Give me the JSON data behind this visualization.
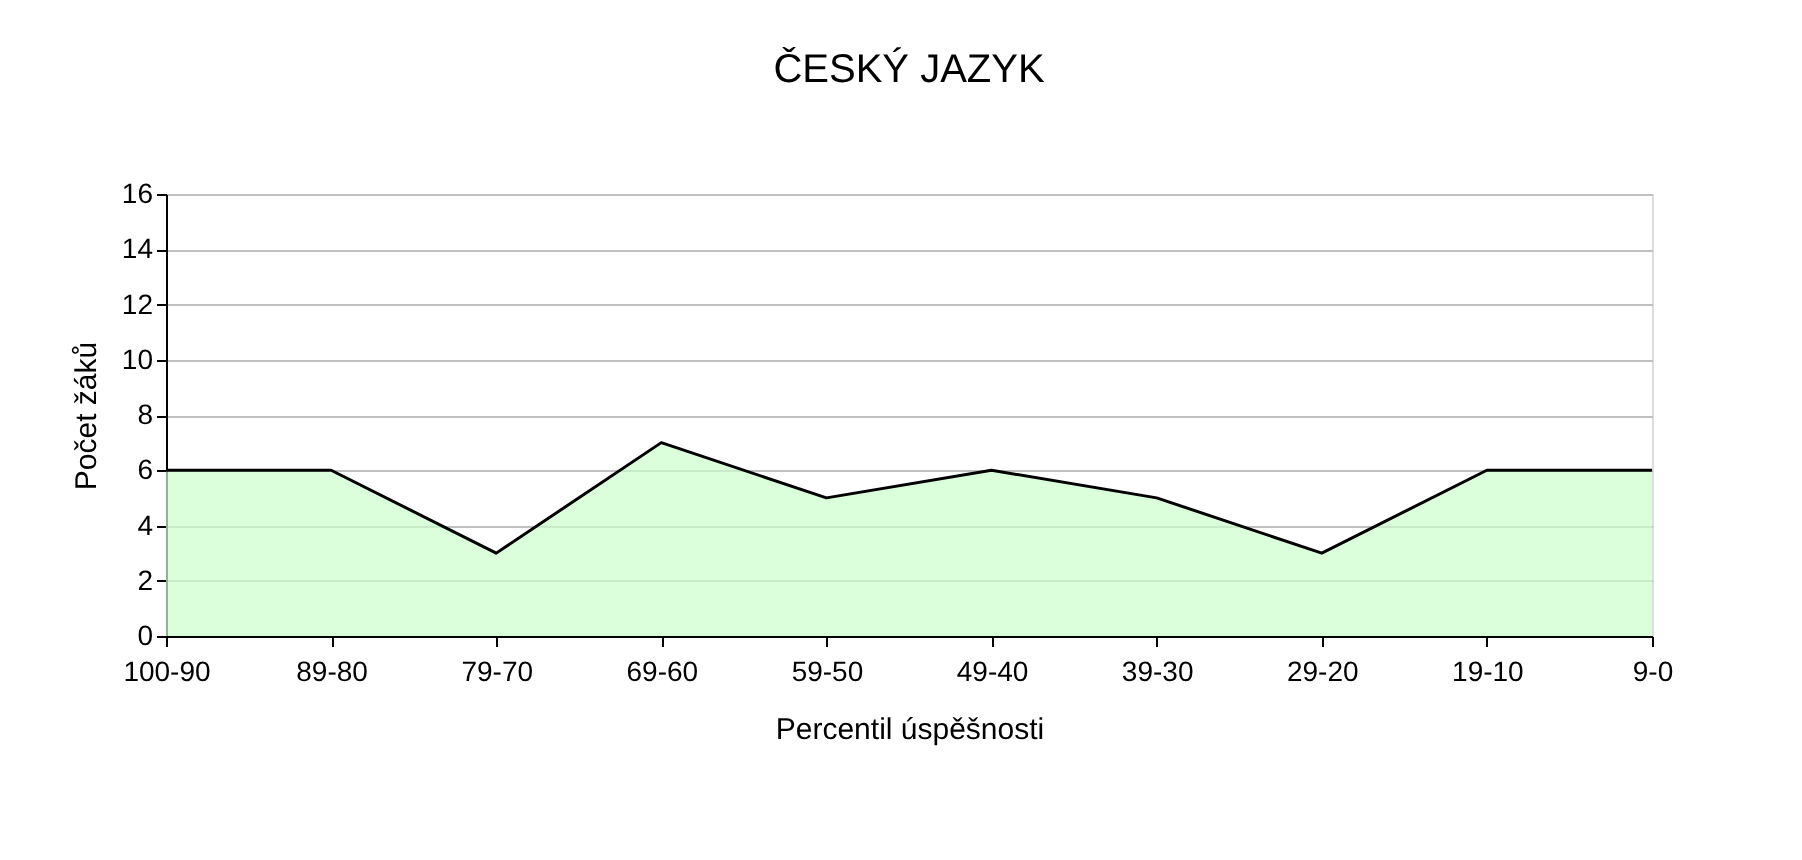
{
  "chart_data": {
    "type": "area",
    "title": "ČESKÝ JAZYK",
    "xlabel": "Percentil úspěšnosti",
    "ylabel": "Počet žáků",
    "categories": [
      "100-90",
      "89-80",
      "79-70",
      "69-60",
      "59-50",
      "49-40",
      "39-30",
      "29-20",
      "19-10",
      "9-0"
    ],
    "series": [
      {
        "color": "#ccffcc",
        "values": [
          6,
          6,
          3,
          7,
          5,
          6,
          5,
          3,
          6,
          6
        ]
      }
    ],
    "ylim": [
      0,
      16
    ],
    "yticks": [
      0,
      2,
      4,
      6,
      8,
      10,
      12,
      14,
      16
    ],
    "grid": "y"
  }
}
